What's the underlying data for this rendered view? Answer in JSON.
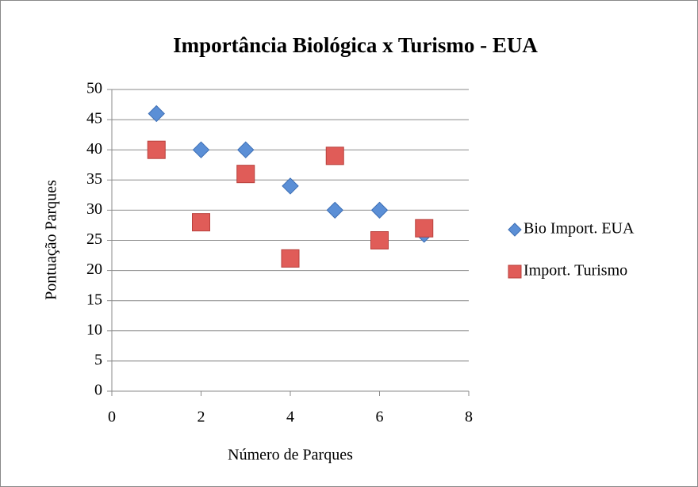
{
  "chart_data": {
    "type": "scatter",
    "title": "Importância Biológica x Turismo - EUA",
    "x_label": "Número de Parques",
    "y_label": "Pontuação Parques",
    "x": [
      1,
      2,
      3,
      4,
      5,
      6,
      7
    ],
    "series": [
      {
        "name": "Bio Import. EUA",
        "color": "#5b8fd6",
        "marker": "diamond",
        "values": [
          46,
          40,
          40,
          34,
          30,
          30,
          26
        ]
      },
      {
        "name": "Import. Turismo",
        "color": "#e05c58",
        "marker": "square",
        "values": [
          40,
          28,
          36,
          22,
          39,
          25,
          27
        ]
      }
    ],
    "xlim": [
      0,
      8
    ],
    "xticks": [
      0,
      2,
      4,
      6,
      8
    ],
    "ylim": [
      0,
      50
    ],
    "yticks": [
      0,
      5,
      10,
      15,
      20,
      25,
      30,
      35,
      40,
      45,
      50
    ],
    "grid": true,
    "legend": "right"
  }
}
